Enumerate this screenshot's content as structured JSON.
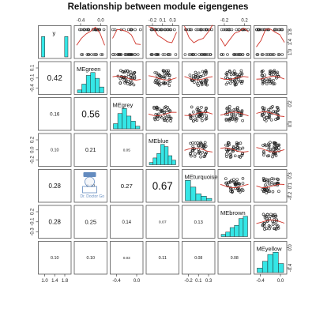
{
  "chart_data": {
    "type": "scatter",
    "title": "Relationship between module eigengenes",
    "variables": [
      "y",
      "MEgreen",
      "MEgrey",
      "MEblue",
      "MEturquoise",
      "MEbrown",
      "MEyellow"
    ],
    "diagonal": "histogram",
    "upper_panels": "scatterplot with red smoothed fit line",
    "lower_panels": "correlation coefficient",
    "correlations": [
      {
        "row": "MEgreen",
        "col": "y",
        "value": "0.42"
      },
      {
        "row": "MEgrey",
        "col": "y",
        "value": "0.16"
      },
      {
        "row": "MEgrey",
        "col": "MEgreen",
        "value": "0.56"
      },
      {
        "row": "MEblue",
        "col": "y",
        "value": "0.10"
      },
      {
        "row": "MEblue",
        "col": "MEgreen",
        "value": "0.21"
      },
      {
        "row": "MEblue",
        "col": "MEgrey",
        "value": "0.05"
      },
      {
        "row": "MEturquoise",
        "col": "y",
        "value": "0.28"
      },
      {
        "row": "MEturquoise",
        "col": "MEgreen",
        "value": "0.10"
      },
      {
        "row": "MEturquoise",
        "col": "MEgrey",
        "value": "0.27"
      },
      {
        "row": "MEturquoise",
        "col": "MEblue",
        "value": "0.67"
      },
      {
        "row": "MEbrown",
        "col": "y",
        "value": "0.28"
      },
      {
        "row": "MEbrown",
        "col": "MEgreen",
        "value": "0.25"
      },
      {
        "row": "MEbrown",
        "col": "MEgrey",
        "value": "0.14"
      },
      {
        "row": "MEbrown",
        "col": "MEblue",
        "value": "0.07"
      },
      {
        "row": "MEbrown",
        "col": "MEturquoise",
        "value": "0.13"
      },
      {
        "row": "MEyellow",
        "col": "y",
        "value": "0.10"
      },
      {
        "row": "MEyellow",
        "col": "MEgreen",
        "value": "0.10"
      },
      {
        "row": "MEyellow",
        "col": "MEgrey",
        "value": "0.03"
      },
      {
        "row": "MEyellow",
        "col": "MEblue",
        "value": "0.11"
      },
      {
        "row": "MEyellow",
        "col": "MEturquoise",
        "value": "0.08"
      },
      {
        "row": "MEyellow",
        "col": "MEbrown",
        "value": "0.08"
      }
    ],
    "histograms": {
      "y": [
        5,
        0,
        0,
        0,
        0,
        0,
        0,
        5
      ],
      "MEgreen": [
        1,
        3,
        6,
        7,
        5,
        2
      ],
      "MEgrey": [
        2,
        6,
        8,
        5,
        3,
        1
      ],
      "MEblue": [
        1,
        3,
        5,
        9,
        8,
        4,
        2
      ],
      "MEturquoise": [
        9,
        6,
        3,
        2,
        1
      ],
      "MEbrown": [
        1,
        2,
        4,
        5,
        8,
        9
      ],
      "MEyellow": [
        2,
        5,
        8,
        9,
        4
      ]
    },
    "axis_ticks": {
      "top": [
        {
          "col": 1,
          "labels": [
            "-0.4",
            "0.0"
          ]
        },
        {
          "col": 3,
          "labels": [
            "-0.2",
            "0.1",
            "0.3"
          ]
        },
        {
          "col": 5,
          "labels": [
            "-0.2",
            "0.2"
          ]
        }
      ],
      "bottom": [
        {
          "col": 0,
          "labels": [
            "1.0",
            "1.4",
            "1.8"
          ]
        },
        {
          "col": 2,
          "labels": [
            "-0.4",
            "0.0"
          ]
        },
        {
          "col": 4,
          "labels": [
            "-0.2",
            "0.1",
            "0.3"
          ]
        },
        {
          "col": 6,
          "labels": [
            "-0.4",
            "0.0"
          ]
        }
      ],
      "left": [
        {
          "row": 1,
          "labels": [
            "0.1",
            "-0.1",
            "-0.4"
          ]
        },
        {
          "row": 3,
          "labels": [
            "0.2",
            "0.0",
            "-0.2"
          ]
        },
        {
          "row": 5,
          "labels": [
            "0.2",
            "-0.1",
            "-0.3"
          ]
        }
      ],
      "right": [
        {
          "row": 0,
          "labels": [
            "1.8",
            "1.4",
            "1.0"
          ]
        },
        {
          "row": 2,
          "labels": [
            "0.2",
            "0.0"
          ]
        },
        {
          "row": 4,
          "labels": [
            "0.3",
            "0.1",
            "-0.2"
          ]
        },
        {
          "row": 6,
          "labels": [
            "0.0",
            "-0.4"
          ]
        }
      ]
    },
    "colors": {
      "histogram_fill": "#35e6e6",
      "smooth_line": "#d0352b",
      "points": "#222222"
    },
    "grid": false,
    "legend": "none"
  },
  "watermark": {
    "text": "Dr. Doctor Go"
  }
}
